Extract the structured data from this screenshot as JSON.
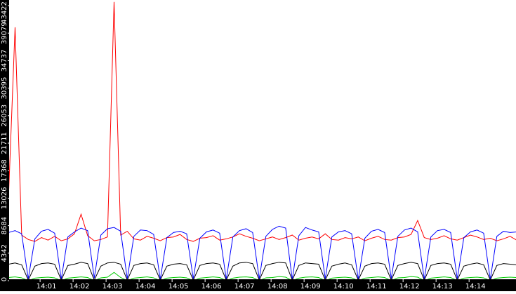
{
  "chart_data": {
    "type": "line",
    "xlim": [
      -0.13,
      15.23
    ],
    "ylim": [
      0,
      43422
    ],
    "yticks": [
      0,
      4342,
      8684,
      13026,
      17368,
      21711,
      26053,
      30395,
      34737,
      39079,
      43422
    ],
    "xticks": [
      {
        "value": 1,
        "label": "14:01"
      },
      {
        "value": 2,
        "label": "14:02"
      },
      {
        "value": 3,
        "label": "14:03"
      },
      {
        "value": 4,
        "label": "14:04"
      },
      {
        "value": 5,
        "label": "14:05"
      },
      {
        "value": 6,
        "label": "14:06"
      },
      {
        "value": 7,
        "label": "14:07"
      },
      {
        "value": 8,
        "label": "14:08"
      },
      {
        "value": 9,
        "label": "14:09"
      },
      {
        "value": 10,
        "label": "14:10"
      },
      {
        "value": 11,
        "label": "14:11"
      },
      {
        "value": 12,
        "label": "14:12"
      },
      {
        "value": 13,
        "label": "14:13"
      },
      {
        "value": 14,
        "label": "14:14"
      }
    ],
    "x": [
      -0.15,
      0.05,
      0.25,
      0.45,
      0.65,
      0.85,
      1.05,
      1.25,
      1.45,
      1.65,
      1.85,
      2.05,
      2.25,
      2.45,
      2.65,
      2.85,
      3.05,
      3.25,
      3.45,
      3.65,
      3.85,
      4.05,
      4.25,
      4.45,
      4.65,
      4.85,
      5.05,
      5.25,
      5.45,
      5.65,
      5.85,
      6.05,
      6.25,
      6.45,
      6.65,
      6.85,
      7.05,
      7.25,
      7.45,
      7.65,
      7.85,
      8.05,
      8.25,
      8.45,
      8.65,
      8.85,
      9.05,
      9.25,
      9.45,
      9.65,
      9.85,
      10.05,
      10.25,
      10.45,
      10.65,
      10.85,
      11.05,
      11.25,
      11.45,
      11.65,
      11.85,
      12.05,
      12.25,
      12.45,
      12.65,
      12.85,
      13.05,
      13.25,
      13.45,
      13.65,
      13.85,
      14.05,
      14.25,
      14.45,
      14.65,
      14.85,
      15.05,
      15.25
    ],
    "series": [
      {
        "color": "#ff0000",
        "values": [
          13000,
          40000,
          7200,
          6500,
          6200,
          6800,
          6400,
          7000,
          6300,
          6600,
          7400,
          10500,
          7100,
          6300,
          6500,
          6900,
          44000,
          7200,
          7800,
          6600,
          6400,
          7000,
          6700,
          6300,
          6800,
          6900,
          7300,
          6500,
          6200,
          6700,
          6800,
          7100,
          6400,
          6600,
          6900,
          7400,
          7000,
          6700,
          6300,
          6600,
          6900,
          6500,
          6800,
          7200,
          6400,
          6700,
          6900,
          6600,
          7400,
          6500,
          6400,
          6800,
          6600,
          6900,
          6300,
          6700,
          7000,
          6500,
          6400,
          6800,
          6900,
          7300,
          9500,
          6800,
          6500,
          6700,
          7100,
          6600,
          6400,
          6800,
          7200,
          6900,
          6500,
          6700,
          6300,
          6600,
          7000,
          6400
        ]
      },
      {
        "color": "#0000ff",
        "values": [
          7600,
          7900,
          7400,
          300,
          6600,
          7800,
          8100,
          7500,
          200,
          6900,
          7700,
          8300,
          7900,
          400,
          7200,
          8200,
          8400,
          7800,
          300,
          7000,
          8000,
          7900,
          7300,
          200,
          6800,
          7600,
          7800,
          7400,
          300,
          6700,
          7700,
          8000,
          7500,
          200,
          6900,
          7900,
          8200,
          7600,
          300,
          7000,
          8100,
          8600,
          8300,
          200,
          7100,
          8400,
          8000,
          7700,
          300,
          6900,
          7700,
          7900,
          7400,
          200,
          6700,
          7800,
          8100,
          7600,
          300,
          7000,
          8000,
          8300,
          7700,
          200,
          6900,
          7900,
          8100,
          7600,
          300,
          6800,
          7700,
          8000,
          7500,
          200,
          7000,
          7800,
          7600,
          7700
        ]
      },
      {
        "color": "#000000",
        "values": [
          2600,
          2800,
          2500,
          100,
          2300,
          2700,
          2800,
          2600,
          100,
          2400,
          2600,
          2900,
          2700,
          100,
          2300,
          2800,
          2900,
          2600,
          100,
          2400,
          2700,
          2800,
          2500,
          100,
          2300,
          2600,
          2700,
          2500,
          100,
          2400,
          2700,
          2800,
          2600,
          100,
          2300,
          2800,
          2900,
          2700,
          100,
          2400,
          2700,
          2900,
          2800,
          100,
          2400,
          2800,
          2700,
          2600,
          100,
          2300,
          2600,
          2800,
          2500,
          100,
          2300,
          2700,
          2800,
          2600,
          100,
          2400,
          2700,
          2900,
          2700,
          100,
          2400,
          2700,
          2800,
          2600,
          100,
          2300,
          2600,
          2800,
          2500,
          100,
          2400,
          2700,
          2600,
          2500
        ]
      },
      {
        "color": "#00cc00",
        "values": [
          500,
          600,
          450,
          0,
          400,
          500,
          550,
          450,
          0,
          400,
          500,
          600,
          500,
          0,
          450,
          550,
          1300,
          500,
          0,
          400,
          500,
          600,
          450,
          0,
          400,
          500,
          550,
          450,
          0,
          400,
          500,
          600,
          500,
          0,
          400,
          550,
          600,
          500,
          0,
          450,
          500,
          650,
          550,
          0,
          400,
          550,
          600,
          500,
          0,
          400,
          500,
          550,
          450,
          0,
          400,
          500,
          600,
          500,
          0,
          450,
          500,
          650,
          550,
          0,
          400,
          500,
          600,
          500,
          0,
          400,
          500,
          550,
          450,
          0,
          400,
          500,
          550,
          500
        ]
      }
    ]
  }
}
